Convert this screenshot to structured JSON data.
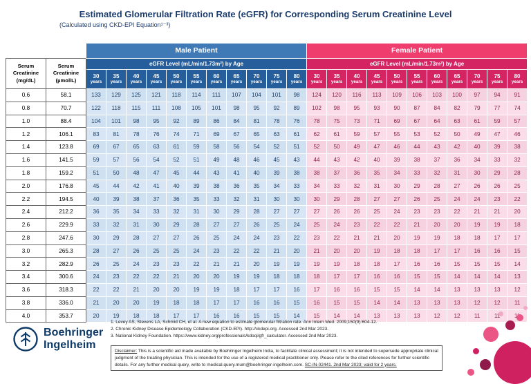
{
  "page": {
    "title": "Estimated Glomerular Filtration Rate (eGFR) for Corresponding Serum Creatinine Level",
    "subtitle": "(Calculated using CKD-EPI Equation¹⁻³)"
  },
  "table": {
    "male_header": "Male Patient",
    "female_header": "Female Patient",
    "egfr_header": "eGFR Level (mL/min/1.73m²) by Age",
    "col1_header": "Serum Creatinine (mg/dL)",
    "col2_header": "Serum Creatinine (µmol/L)",
    "ages": [
      "30",
      "35",
      "40",
      "45",
      "50",
      "55",
      "60",
      "65",
      "70",
      "75",
      "80"
    ],
    "age_unit": "years",
    "rows": [
      {
        "mgdl": "0.6",
        "umol": "58.1",
        "male": [
          133,
          129,
          125,
          121,
          118,
          114,
          111,
          107,
          104,
          101,
          98
        ],
        "female": [
          124,
          120,
          116,
          113,
          109,
          106,
          103,
          100,
          97,
          94,
          91
        ]
      },
      {
        "mgdl": "0.8",
        "umol": "70.7",
        "male": [
          122,
          118,
          115,
          111,
          108,
          105,
          101,
          98,
          95,
          92,
          89
        ],
        "female": [
          102,
          98,
          95,
          93,
          90,
          87,
          84,
          82,
          79,
          77,
          74
        ]
      },
      {
        "mgdl": "1.0",
        "umol": "88.4",
        "male": [
          104,
          101,
          98,
          95,
          92,
          89,
          86,
          84,
          81,
          78,
          76
        ],
        "female": [
          78,
          75,
          73,
          71,
          69,
          67,
          64,
          63,
          61,
          59,
          57
        ]
      },
      {
        "mgdl": "1.2",
        "umol": "106.1",
        "male": [
          83,
          81,
          78,
          76,
          74,
          71,
          69,
          67,
          65,
          63,
          61
        ],
        "female": [
          62,
          61,
          59,
          57,
          55,
          53,
          52,
          50,
          49,
          47,
          46
        ]
      },
      {
        "mgdl": "1.4",
        "umol": "123.8",
        "male": [
          69,
          67,
          65,
          63,
          61,
          59,
          58,
          56,
          54,
          52,
          51
        ],
        "female": [
          52,
          50,
          49,
          47,
          46,
          44,
          43,
          42,
          40,
          39,
          38
        ]
      },
      {
        "mgdl": "1.6",
        "umol": "141.5",
        "male": [
          59,
          57,
          56,
          54,
          52,
          51,
          49,
          48,
          46,
          45,
          43
        ],
        "female": [
          44,
          43,
          42,
          40,
          39,
          38,
          37,
          36,
          34,
          33,
          32
        ]
      },
      {
        "mgdl": "1.8",
        "umol": "159.2",
        "male": [
          51,
          50,
          48,
          47,
          45,
          44,
          43,
          41,
          40,
          39,
          38
        ],
        "female": [
          38,
          37,
          36,
          35,
          34,
          33,
          32,
          31,
          30,
          29,
          28
        ]
      },
      {
        "mgdl": "2.0",
        "umol": "176.8",
        "male": [
          45,
          44,
          42,
          41,
          40,
          39,
          38,
          36,
          35,
          34,
          33
        ],
        "female": [
          34,
          33,
          32,
          31,
          30,
          29,
          28,
          27,
          26,
          26,
          25
        ]
      },
      {
        "mgdl": "2.2",
        "umol": "194.5",
        "male": [
          40,
          39,
          38,
          37,
          36,
          35,
          33,
          32,
          31,
          30,
          30
        ],
        "female": [
          30,
          29,
          28,
          27,
          27,
          26,
          25,
          24,
          24,
          23,
          22
        ]
      },
      {
        "mgdl": "2.4",
        "umol": "212.2",
        "male": [
          36,
          35,
          34,
          33,
          32,
          31,
          30,
          29,
          28,
          27,
          27
        ],
        "female": [
          27,
          26,
          26,
          25,
          24,
          23,
          23,
          22,
          21,
          21,
          20
        ]
      },
      {
        "mgdl": "2.6",
        "umol": "229.9",
        "male": [
          33,
          32,
          31,
          30,
          29,
          28,
          27,
          27,
          26,
          25,
          24
        ],
        "female": [
          25,
          24,
          23,
          22,
          22,
          21,
          20,
          20,
          19,
          19,
          18
        ]
      },
      {
        "mgdl": "2.8",
        "umol": "247.6",
        "male": [
          30,
          29,
          28,
          27,
          27,
          26,
          25,
          24,
          24,
          23,
          22
        ],
        "female": [
          23,
          22,
          21,
          21,
          20,
          19,
          19,
          18,
          18,
          17,
          17
        ]
      },
      {
        "mgdl": "3.0",
        "umol": "265.3",
        "male": [
          28,
          27,
          26,
          25,
          25,
          24,
          23,
          22,
          22,
          21,
          20
        ],
        "female": [
          21,
          20,
          20,
          19,
          18,
          18,
          17,
          17,
          16,
          16,
          15
        ]
      },
      {
        "mgdl": "3.2",
        "umol": "282.9",
        "male": [
          26,
          25,
          24,
          23,
          23,
          22,
          21,
          21,
          20,
          19,
          19
        ],
        "female": [
          19,
          19,
          18,
          18,
          17,
          16,
          16,
          15,
          15,
          15,
          14
        ]
      },
      {
        "mgdl": "3.4",
        "umol": "300.6",
        "male": [
          24,
          23,
          22,
          22,
          21,
          20,
          20,
          19,
          19,
          18,
          18
        ],
        "female": [
          18,
          17,
          17,
          16,
          16,
          15,
          15,
          14,
          14,
          14,
          13
        ]
      },
      {
        "mgdl": "3.6",
        "umol": "318.3",
        "male": [
          22,
          22,
          21,
          20,
          20,
          19,
          19,
          18,
          17,
          17,
          16
        ],
        "female": [
          17,
          16,
          16,
          15,
          15,
          14,
          14,
          13,
          13,
          13,
          12
        ]
      },
      {
        "mgdl": "3.8",
        "umol": "336.0",
        "male": [
          21,
          20,
          20,
          19,
          18,
          18,
          17,
          17,
          16,
          16,
          15
        ],
        "female": [
          16,
          15,
          15,
          14,
          14,
          13,
          13,
          13,
          12,
          12,
          11
        ]
      },
      {
        "mgdl": "4.0",
        "umol": "353.7",
        "male": [
          20,
          19,
          18,
          18,
          17,
          17,
          16,
          16,
          15,
          15,
          14
        ],
        "female": [
          15,
          14,
          14,
          13,
          13,
          13,
          12,
          12,
          11,
          11,
          11
        ]
      }
    ]
  },
  "footer": {
    "logo_line1": "Boehringer",
    "logo_line2": "Ingelheim",
    "references": [
      "1. Levey AS, Stevens LA, Schmid CH, et al. A new equation to estimate glomerular filtration rate. Ann Intern Med. 2009;150(9):604-12.",
      "2. Chronic Kidney Disease Epidemiology Collaboration (CKD-EPI). http://ckdepi.org. Accessed 2nd Mar 2023.",
      "3. National Kidney Foundation. https://www.kidney.org/professionals/kdoqi/gfr_calculator. Accessed 2nd Mar 2023."
    ],
    "disclaimer": {
      "label": "Disclaimer:",
      "body": " This is a scientific aid made available by Boehringer Ingelheim India, to facilitate clinical assessment; it is not intended to supersede appropriate clinical judgment of the treating physician. This is intended for the use of a registered medical practitioner only. Please refer to the cited references for further scientific details. For any further medical query, write to ",
      "email": "medical.query.mum@boehringer-ingelheim.com",
      "tail": ". ",
      "code": "SC-IN-02441. 2nd Mar 2023; valid for 2 years."
    }
  },
  "colors": {
    "title": "#1d3c6e",
    "male_band": "#3f7ab6",
    "male_deep": "#265e9c",
    "male_cell_a": "#d7e5f4",
    "male_cell_b": "#cfe0f1",
    "male_text": "#1c3f66",
    "female_band": "#ef3e6e",
    "female_deep": "#d42462",
    "female_cell_a": "#fadde8",
    "female_cell_b": "#f6d2e0",
    "female_text": "#8c2146",
    "logo": "#0d3a67"
  }
}
